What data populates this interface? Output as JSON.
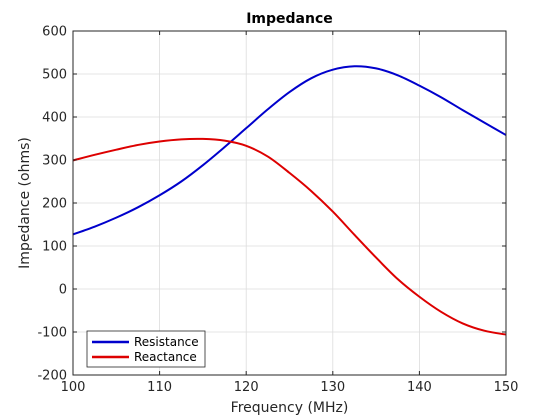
{
  "chart_data": {
    "type": "line",
    "title": "Impedance",
    "xlabel": "Frequency (MHz)",
    "ylabel": "Impedance (ohms)",
    "xlim": [
      100,
      150
    ],
    "ylim": [
      -200,
      600
    ],
    "x_ticks": [
      "100",
      "110",
      "120",
      "130",
      "140",
      "150"
    ],
    "y_ticks": [
      "-200",
      "-100",
      "0",
      "100",
      "200",
      "300",
      "400",
      "500",
      "600"
    ],
    "grid": true,
    "legend_position": "bottom-left",
    "x": [
      100,
      102.5,
      105,
      107.5,
      110,
      112.5,
      115,
      117.5,
      120,
      122.5,
      125,
      127.5,
      130,
      132.5,
      135,
      137.5,
      140,
      142.5,
      145,
      147.5,
      150
    ],
    "series": [
      {
        "name": "Resistance",
        "color": "#0000cc",
        "values": [
          127,
          145,
          166,
          190,
          218,
          250,
          288,
          330,
          374,
          418,
          458,
          490,
          510,
          518,
          513,
          497,
          473,
          446,
          416,
          387,
          358
        ]
      },
      {
        "name": "Reactance",
        "color": "#dd0000",
        "values": [
          299,
          312,
          324,
          335,
          343,
          348,
          349,
          345,
          333,
          308,
          270,
          228,
          180,
          126,
          73,
          23,
          -18,
          -53,
          -80,
          -97,
          -106
        ]
      }
    ]
  }
}
